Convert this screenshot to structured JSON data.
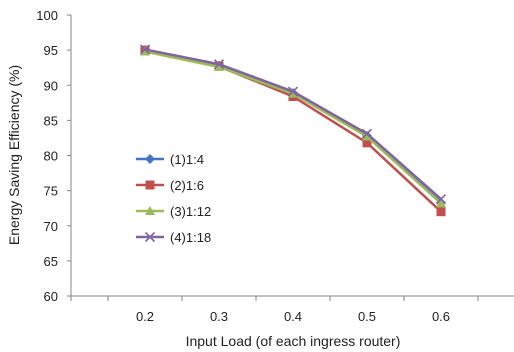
{
  "chart_data": {
    "type": "line",
    "title": "",
    "xlabel": "Input Load (of each ingress router)",
    "ylabel": "Energy Saving Efficiency (%)",
    "x": [
      0.2,
      0.3,
      0.4,
      0.5,
      0.6
    ],
    "xlim": [
      0.1,
      0.7
    ],
    "ylim": [
      60,
      100
    ],
    "x_ticks": [
      "0.2",
      "0.3",
      "0.4",
      "0.5",
      "0.6"
    ],
    "y_ticks": [
      "60",
      "65",
      "70",
      "75",
      "80",
      "85",
      "90",
      "95",
      "100"
    ],
    "grid": false,
    "legend_position": "center-left",
    "series": [
      {
        "name": "(1)1:4",
        "color": "#4472C4",
        "marker": "diamond",
        "values": [
          95.0,
          92.8,
          88.9,
          82.8,
          73.3
        ]
      },
      {
        "name": "(2)1:6",
        "color": "#C0504D",
        "marker": "square",
        "values": [
          95.0,
          92.7,
          88.4,
          81.8,
          72.0
        ]
      },
      {
        "name": "(3)1:12",
        "color": "#9BBB59",
        "marker": "triangle",
        "values": [
          94.8,
          92.6,
          88.8,
          82.7,
          73.2
        ]
      },
      {
        "name": "(4)1:18",
        "color": "#8064A2",
        "marker": "x",
        "values": [
          95.1,
          93.0,
          89.1,
          83.1,
          73.8
        ]
      }
    ]
  }
}
